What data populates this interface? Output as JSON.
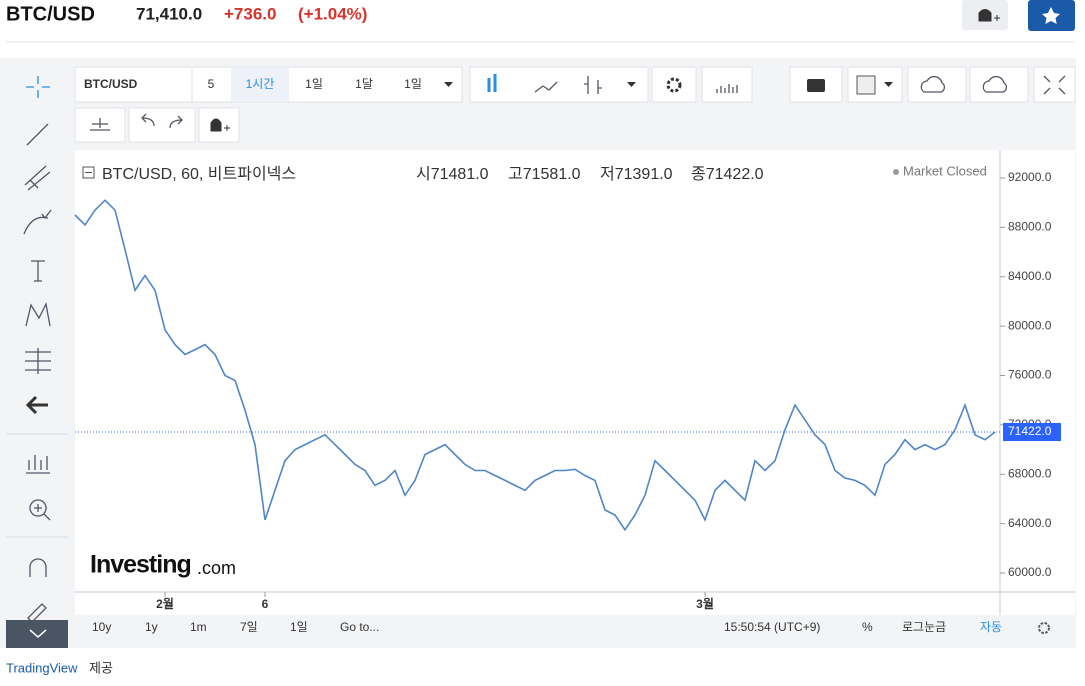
{
  "header": {
    "symbol": "BTC/USD",
    "price": "71,410.0",
    "change": "+736.0",
    "change_pct": "(+1.04%)"
  },
  "toolbar": {
    "symbol": "BTC/USD",
    "intervals": [
      "5",
      "1시간",
      "1일",
      "1달",
      "1일"
    ]
  },
  "ohlc_legend": {
    "title": "BTC/USD, 60, 비트파이넥스",
    "open": "시71481.0",
    "high": "고71581.0",
    "low": "저71391.0",
    "close": "종71422.0",
    "status": "Market Closed"
  },
  "watermark": {
    "brand": "Investing",
    "suffix": ".com"
  },
  "bottom_bar": {
    "ranges": [
      "10y",
      "1y",
      "1m",
      "7일",
      "1일",
      "Go to..."
    ],
    "time": "15:50:54 (UTC+9)",
    "percent": "%",
    "log": "로그눈금",
    "auto": "자동"
  },
  "footer": {
    "link": "TradingView",
    "text": "제공"
  },
  "chart_data": {
    "type": "line",
    "x": [
      0,
      1,
      2,
      3,
      4,
      5,
      6,
      7,
      8,
      9,
      10,
      11,
      12,
      13,
      14,
      15,
      16,
      17,
      18,
      19,
      20,
      21,
      22,
      23,
      24,
      25,
      26,
      27,
      28,
      29,
      30,
      31,
      32,
      33,
      34,
      35,
      36,
      37,
      38,
      39,
      40,
      41,
      42,
      43,
      44,
      45,
      46,
      47,
      48,
      49,
      50,
      51,
      52,
      53,
      54,
      55,
      56,
      57,
      58,
      59,
      60,
      61,
      62,
      63,
      64,
      65,
      66,
      67,
      68,
      69,
      70,
      71,
      72,
      73,
      74,
      75,
      76,
      77,
      78,
      79,
      80,
      81,
      82,
      83,
      84,
      85,
      86,
      87,
      88,
      89,
      90,
      91,
      92
    ],
    "series": [
      {
        "name": "BTC/USD",
        "color": "#4f86c6",
        "values": [
          89000,
          88200,
          89400,
          90200,
          89400,
          86200,
          82900,
          84100,
          82900,
          79700,
          78500,
          77700,
          78100,
          78500,
          77700,
          76000,
          75600,
          73200,
          70400,
          64300,
          66700,
          69100,
          70000,
          70400,
          70800,
          71200,
          70400,
          69600,
          68800,
          68300,
          67100,
          67500,
          68300,
          66300,
          67500,
          69600,
          70000,
          70400,
          69600,
          68800,
          68300,
          68300,
          67900,
          67500,
          67100,
          66700,
          67500,
          67900,
          68300,
          68300,
          68400,
          67900,
          67500,
          65100,
          64700,
          63500,
          64700,
          66300,
          69100,
          68300,
          67500,
          66700,
          65900,
          64300,
          66700,
          67500,
          66700,
          65900,
          69100,
          68300,
          69100,
          71600,
          73600,
          72400,
          71200,
          70400,
          68300,
          67700,
          67500,
          67100,
          66300,
          68800,
          69600,
          70800,
          70000,
          70400,
          70000,
          70400,
          71600,
          73600,
          71200,
          70800,
          71422
        ]
      }
    ],
    "xlim": [
      0,
      92
    ],
    "xticks": [
      {
        "value": 9,
        "label": "2월"
      },
      {
        "value": 19,
        "label": "6"
      },
      {
        "value": 63,
        "label": "3월"
      }
    ],
    "ylim": [
      58461,
      94268
    ],
    "yticks": [
      {
        "value": 92000,
        "label": "92000.0"
      },
      {
        "value": 88000,
        "label": "88000.0"
      },
      {
        "value": 84000,
        "label": "84000.0"
      },
      {
        "value": 80000,
        "label": "80000.0"
      },
      {
        "value": 76000,
        "label": "76000.0"
      },
      {
        "value": 72000,
        "label": "72000.0"
      },
      {
        "value": 68000,
        "label": "68000.0"
      },
      {
        "value": 64000,
        "label": "64000.0"
      },
      {
        "value": 60000,
        "label": "60000.0"
      }
    ],
    "price_line": {
      "value": 71422,
      "label": "71422.0",
      "color": "#2962ff"
    }
  }
}
